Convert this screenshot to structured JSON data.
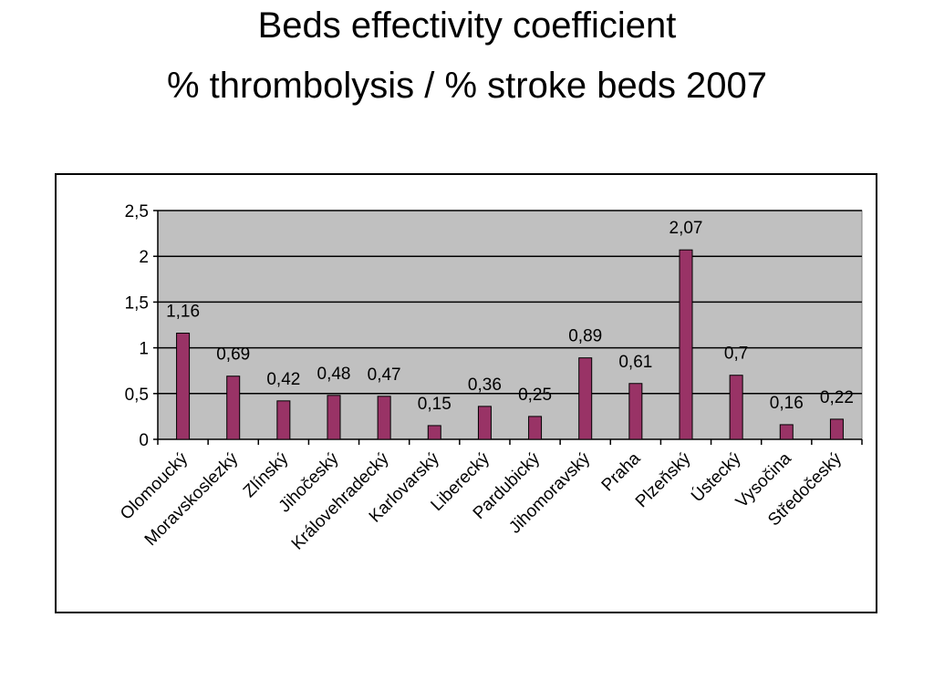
{
  "page": {
    "title_line1": "Beds effectivity coefficient",
    "title_line2": "% thrombolysis / % stroke beds 2007"
  },
  "chart_data": {
    "type": "bar",
    "categories": [
      "Olomoucký",
      "Moravskoslezký",
      "Zlínský",
      "Jihočeský",
      "Královehradecký",
      "Karlovarský",
      "Liberecký",
      "Pardubický",
      "Jihomoravský",
      "Praha",
      "Plzeňský",
      "Ústecký",
      "Vysočina",
      "Středočeský"
    ],
    "values": [
      1.16,
      0.69,
      0.42,
      0.48,
      0.47,
      0.15,
      0.36,
      0.25,
      0.89,
      0.61,
      2.07,
      0.7,
      0.16,
      0.22
    ],
    "value_labels": [
      "1,16",
      "0,69",
      "0,42",
      "0,48",
      "0,47",
      "0,15",
      "0,36",
      "0,25",
      "0,89",
      "0,61",
      "2,07",
      "0,7",
      "0,16",
      "0,22"
    ],
    "y_ticks": [
      0,
      0.5,
      1,
      1.5,
      2,
      2.5
    ],
    "y_tick_labels": [
      "0",
      "0,5",
      "1",
      "1,5",
      "2",
      "2,5"
    ],
    "ylim": [
      0,
      2.5
    ],
    "grid": true,
    "colors": {
      "bar_fill": "#993366",
      "bar_stroke": "#000000",
      "plot_bg": "#c0c0c0",
      "grid": "#000000"
    }
  }
}
